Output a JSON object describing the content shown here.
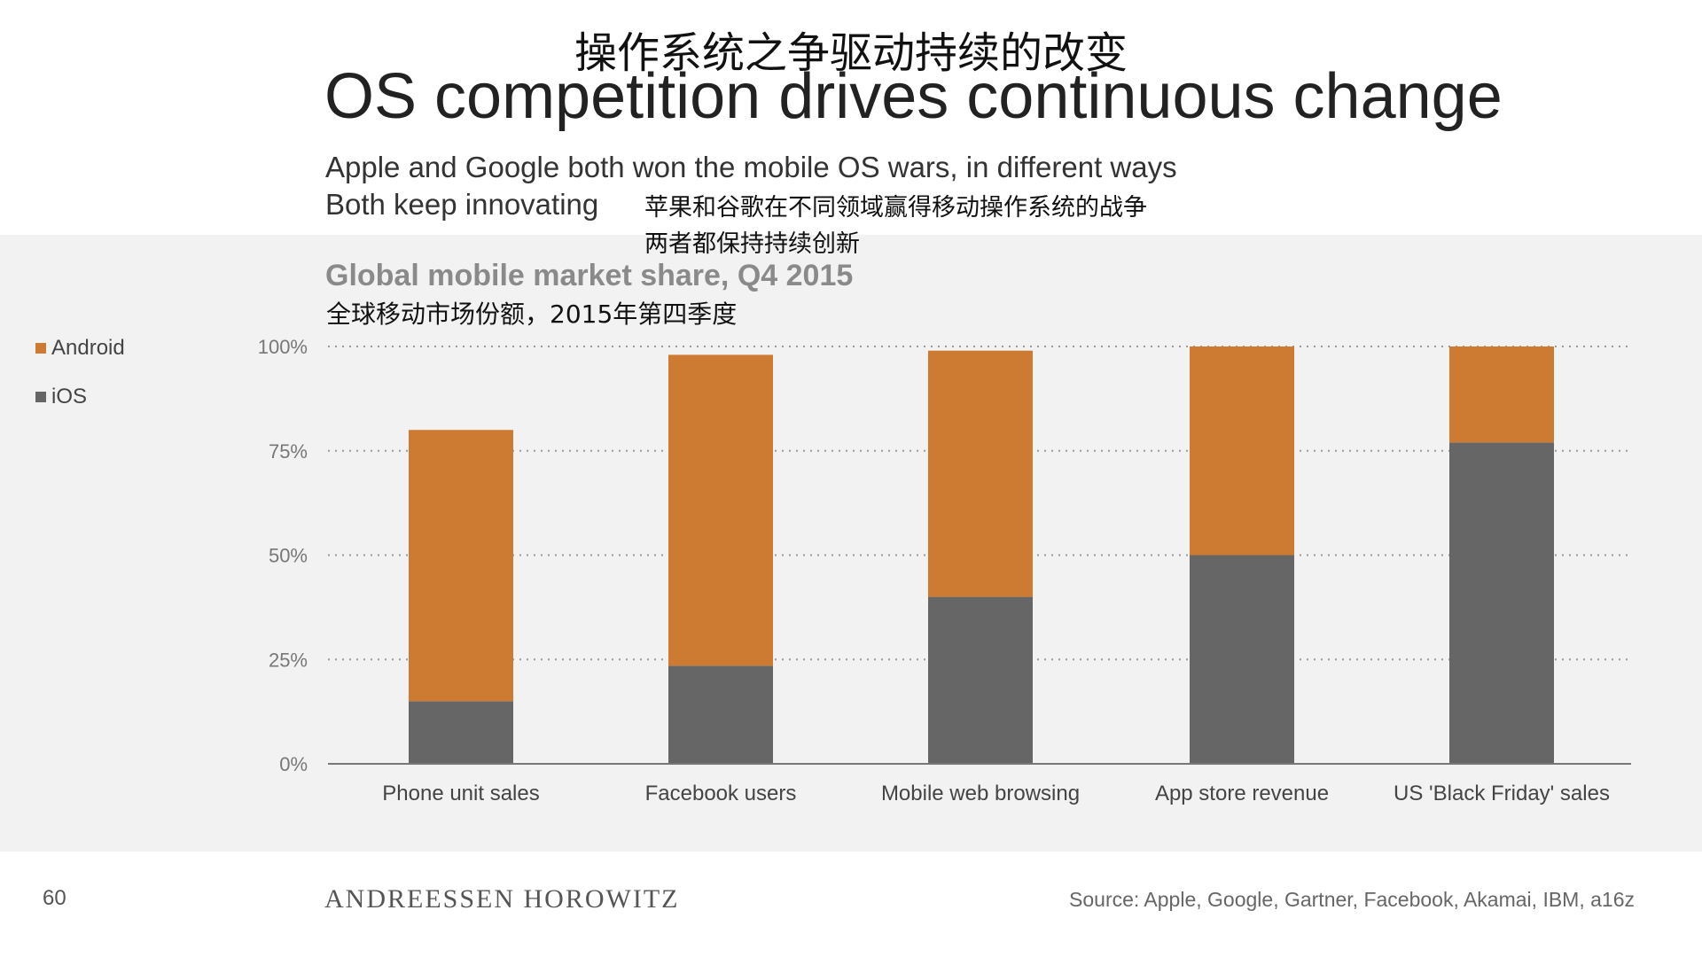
{
  "slide": {
    "title_zh": "操作系统之争驱动持续的改变",
    "title_en": "OS competition drives continuous change",
    "subtitle_en_line1": "Apple and Google both won the mobile OS wars, in different ways",
    "subtitle_en_line2": "Both keep innovating",
    "subtitle_zh_line1": "苹果和谷歌在不同领域赢得移动操作系统的战争",
    "subtitle_zh_line2": "两者都保持持续创新",
    "page_number": "60",
    "brand": "ANDREESSEN HOROWITZ",
    "source": "Source: Apple, Google, Gartner, Facebook, Akamai, IBM, a16z"
  },
  "colors": {
    "android": "#cd7a33",
    "ios": "#666666",
    "grid": "#999999",
    "axis": "#777777"
  },
  "chart_data": {
    "type": "bar",
    "stacked": true,
    "title": "Global mobile market share, Q4 2015",
    "subtitle_zh": "全球移动市场份额，2015年第四季度",
    "categories": [
      "Phone unit sales",
      "Facebook users",
      "Mobile web browsing",
      "App store revenue",
      "US 'Black Friday' sales"
    ],
    "series": [
      {
        "name": "iOS",
        "values": [
          15,
          23.5,
          40,
          50,
          77
        ]
      },
      {
        "name": "Android",
        "values": [
          65,
          74.5,
          59,
          50,
          23
        ]
      }
    ],
    "legend": [
      "Android",
      "iOS"
    ],
    "y_ticks": [
      0,
      25,
      50,
      75,
      100
    ],
    "y_tick_labels": [
      "0%",
      "25%",
      "50%",
      "75%",
      "100%"
    ],
    "ylim": [
      0,
      100
    ],
    "xlabel": "",
    "ylabel": "",
    "grid": "dotted horizontal"
  }
}
